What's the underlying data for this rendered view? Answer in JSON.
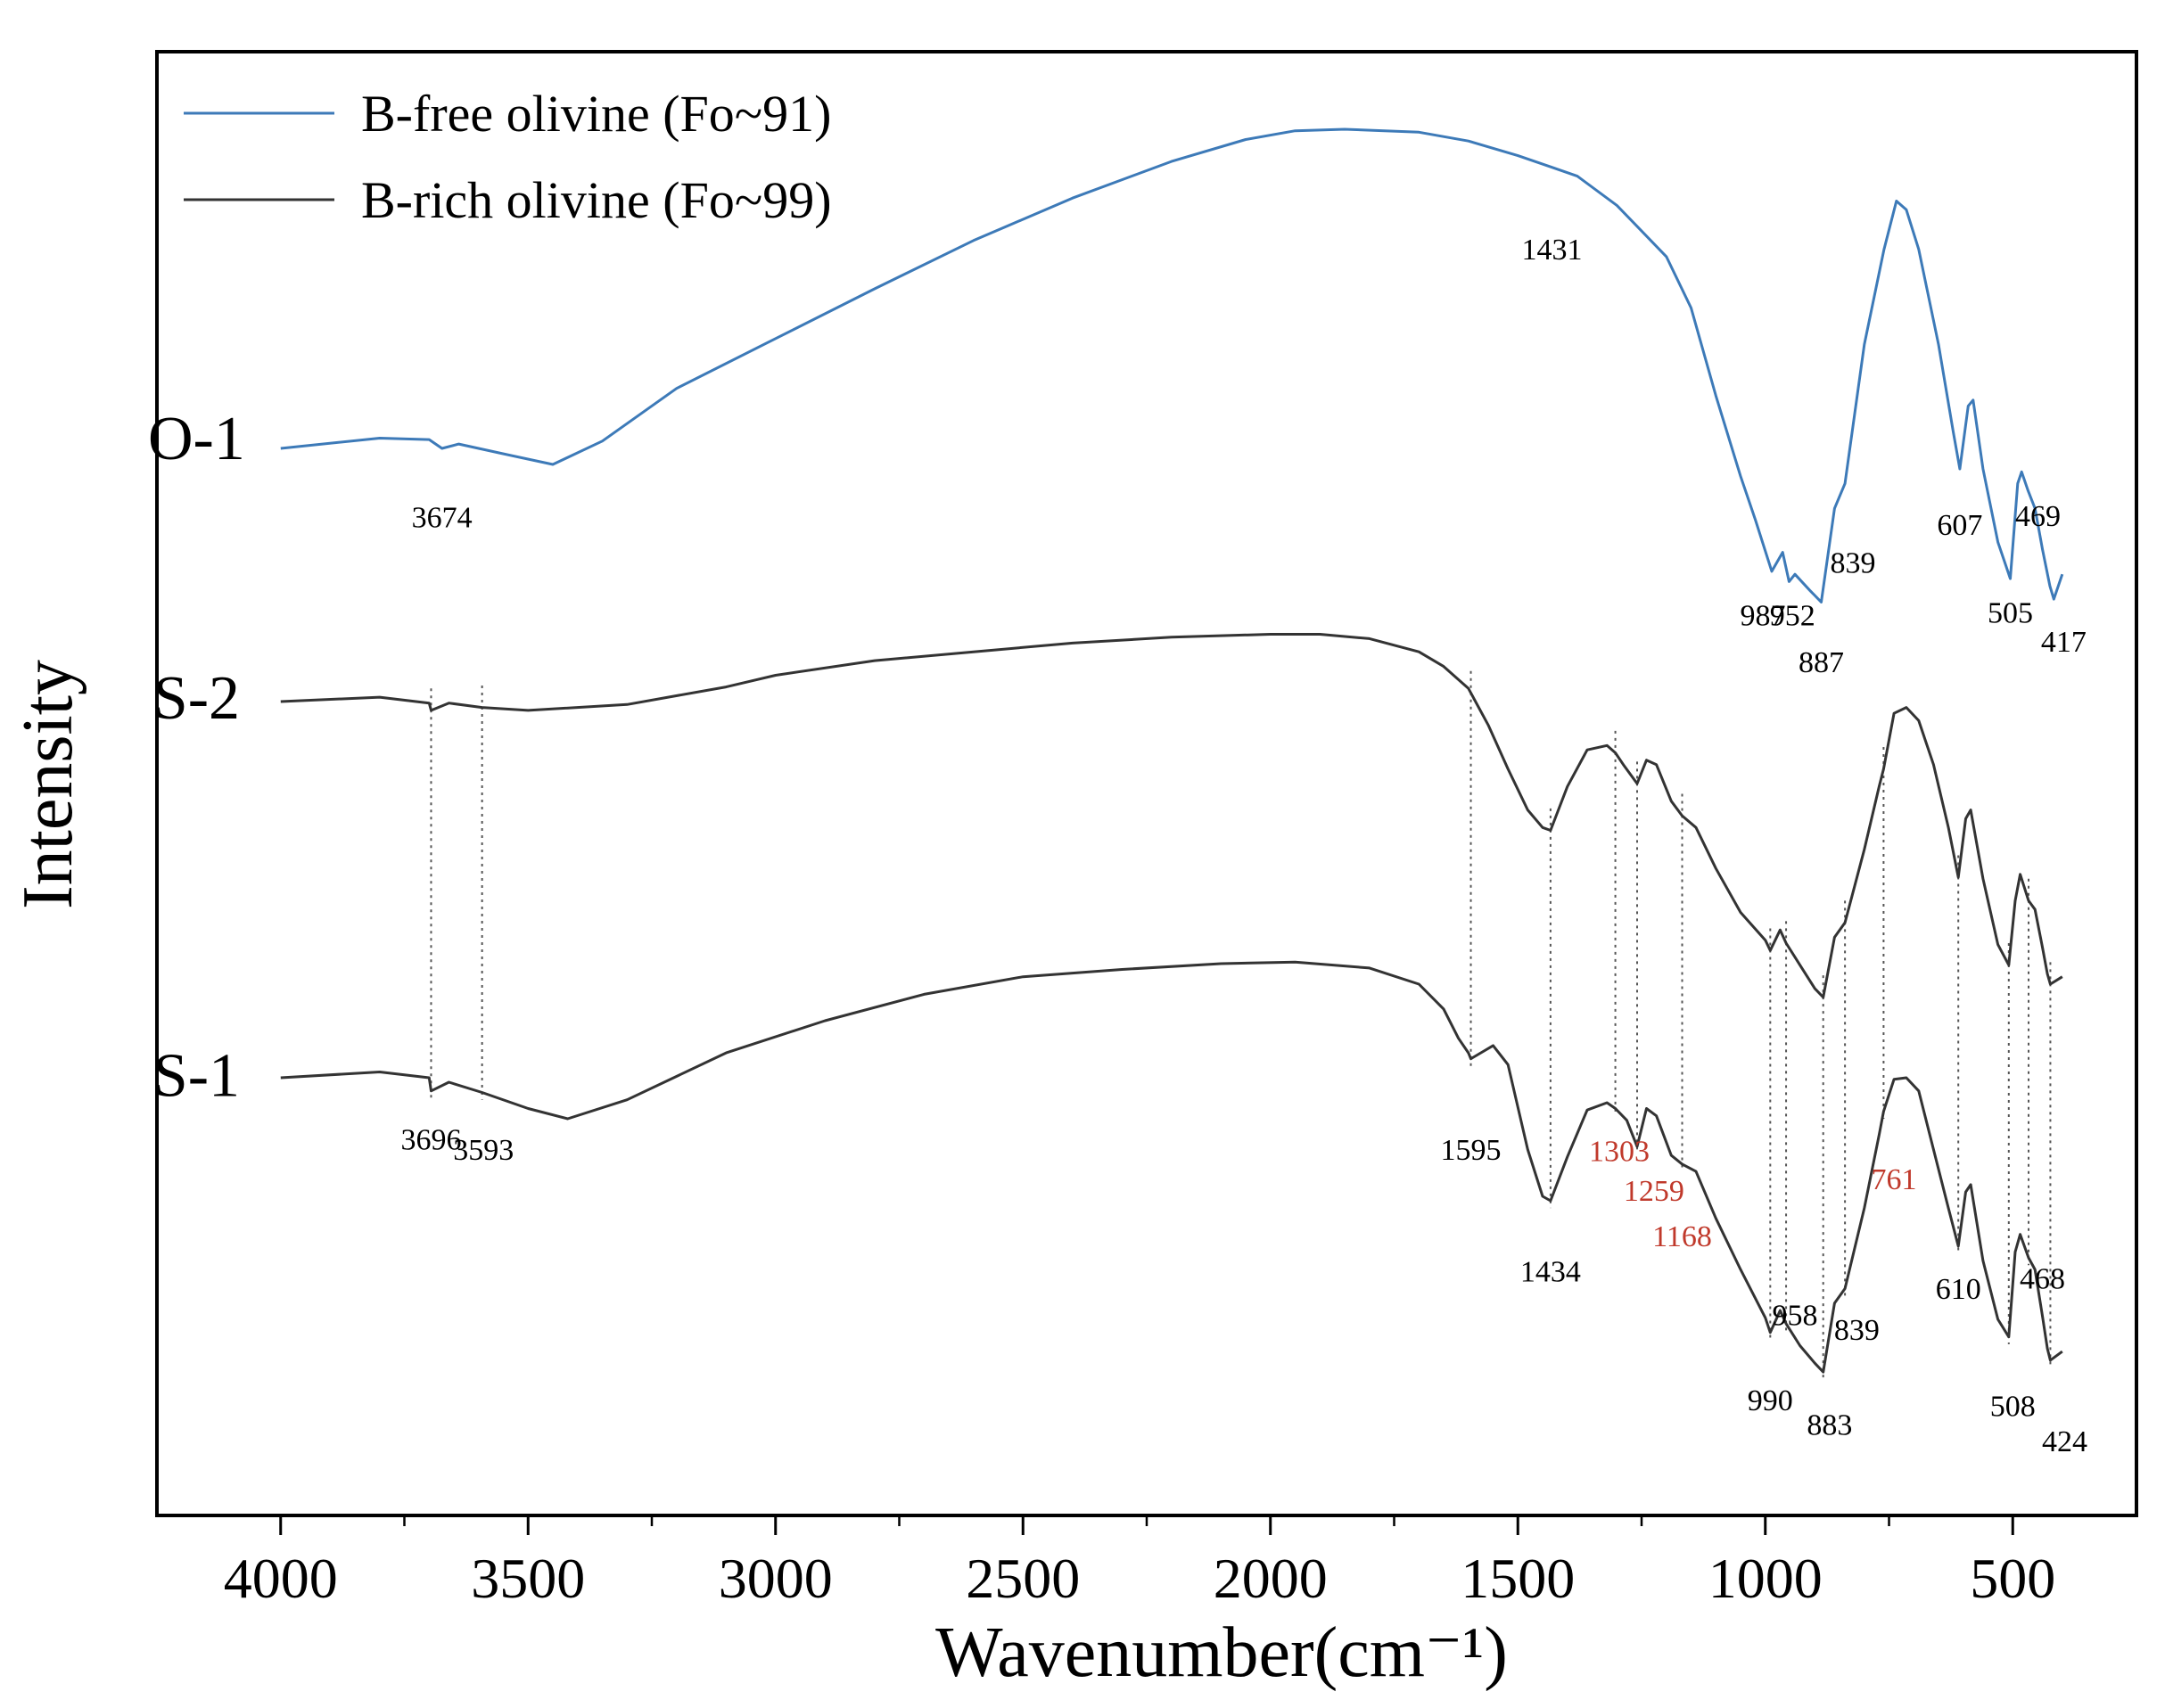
{
  "chart_data": {
    "type": "line",
    "title": "",
    "xlabel": "Wavenumber(cm⁻¹)",
    "ylabel": "Intensity",
    "xlim": [
      4250,
      250
    ],
    "ylim": [
      0,
      100
    ],
    "x_reversed": true,
    "y_ticks_shown": false,
    "grid": false,
    "x_ticks": [
      4000,
      3500,
      3000,
      2500,
      2000,
      1500,
      1000,
      500
    ],
    "x_tick_labels": [
      "4000",
      "3500",
      "3000",
      "2500",
      "2000",
      "1500",
      "1000",
      "500"
    ],
    "legend": {
      "position": "top-left",
      "entries": [
        {
          "label": "B-free olivine (Fo~91)",
          "color": "#3d7ab8"
        },
        {
          "label": "B-rich olivine (Fo~99)",
          "color": "#333333"
        }
      ]
    },
    "series": [
      {
        "name": "O-1",
        "legend": "B-free olivine (Fo~91)",
        "color": "#3d7ab8",
        "points": [
          [
            4000,
            72.9
          ],
          [
            3800,
            73.6
          ],
          [
            3700,
            73.5
          ],
          [
            3674,
            72.9
          ],
          [
            3640,
            73.2
          ],
          [
            3560,
            72.6
          ],
          [
            3450,
            71.8
          ],
          [
            3350,
            73.4
          ],
          [
            3200,
            77.0
          ],
          [
            3000,
            80.4
          ],
          [
            2800,
            83.8
          ],
          [
            2600,
            87.1
          ],
          [
            2400,
            90.0
          ],
          [
            2200,
            92.5
          ],
          [
            2050,
            94.0
          ],
          [
            1950,
            94.6
          ],
          [
            1850,
            94.7
          ],
          [
            1700,
            94.5
          ],
          [
            1600,
            93.9
          ],
          [
            1500,
            92.9
          ],
          [
            1431,
            92.1
          ],
          [
            1380,
            91.5
          ],
          [
            1300,
            89.5
          ],
          [
            1200,
            86.0
          ],
          [
            1150,
            82.5
          ],
          [
            1100,
            76.5
          ],
          [
            1050,
            71.0
          ],
          [
            1020,
            68.0
          ],
          [
            987,
            64.5
          ],
          [
            965,
            65.8
          ],
          [
            952,
            63.8
          ],
          [
            940,
            64.3
          ],
          [
            910,
            63.2
          ],
          [
            887,
            62.4
          ],
          [
            860,
            68.8
          ],
          [
            839,
            70.5
          ],
          [
            800,
            80.0
          ],
          [
            760,
            86.5
          ],
          [
            735,
            89.8
          ],
          [
            715,
            89.2
          ],
          [
            690,
            86.5
          ],
          [
            650,
            80.0
          ],
          [
            620,
            74.0
          ],
          [
            607,
            71.5
          ],
          [
            590,
            75.8
          ],
          [
            580,
            76.2
          ],
          [
            560,
            71.5
          ],
          [
            530,
            66.5
          ],
          [
            505,
            64.0
          ],
          [
            490,
            70.5
          ],
          [
            482,
            71.3
          ],
          [
            469,
            70.0
          ],
          [
            455,
            68.8
          ],
          [
            440,
            66.0
          ],
          [
            425,
            63.5
          ],
          [
            417,
            62.6
          ],
          [
            400,
            64.3
          ]
        ]
      },
      {
        "name": "S-2",
        "legend": "B-rich olivine (Fo~99)",
        "color": "#333333",
        "points": [
          [
            4000,
            55.6
          ],
          [
            3800,
            55.9
          ],
          [
            3700,
            55.5
          ],
          [
            3696,
            55.0
          ],
          [
            3660,
            55.5
          ],
          [
            3593,
            55.2
          ],
          [
            3500,
            55.0
          ],
          [
            3300,
            55.4
          ],
          [
            3100,
            56.6
          ],
          [
            3000,
            57.4
          ],
          [
            2800,
            58.4
          ],
          [
            2600,
            59.0
          ],
          [
            2400,
            59.6
          ],
          [
            2200,
            60.0
          ],
          [
            2000,
            60.2
          ],
          [
            1900,
            60.2
          ],
          [
            1800,
            59.9
          ],
          [
            1700,
            59.0
          ],
          [
            1650,
            58.0
          ],
          [
            1600,
            56.5
          ],
          [
            1560,
            54.0
          ],
          [
            1520,
            51.0
          ],
          [
            1480,
            48.2
          ],
          [
            1450,
            47.0
          ],
          [
            1434,
            46.8
          ],
          [
            1400,
            49.8
          ],
          [
            1360,
            52.3
          ],
          [
            1320,
            52.6
          ],
          [
            1303,
            52.1
          ],
          [
            1285,
            51.2
          ],
          [
            1259,
            50.0
          ],
          [
            1240,
            51.6
          ],
          [
            1220,
            51.3
          ],
          [
            1190,
            48.8
          ],
          [
            1168,
            47.8
          ],
          [
            1140,
            47.0
          ],
          [
            1100,
            44.2
          ],
          [
            1050,
            41.2
          ],
          [
            1000,
            39.3
          ],
          [
            990,
            38.6
          ],
          [
            970,
            40.0
          ],
          [
            958,
            39.1
          ],
          [
            930,
            37.6
          ],
          [
            900,
            36.0
          ],
          [
            883,
            35.4
          ],
          [
            860,
            39.5
          ],
          [
            839,
            40.5
          ],
          [
            800,
            45.5
          ],
          [
            770,
            49.8
          ],
          [
            761,
            51.0
          ],
          [
            740,
            54.8
          ],
          [
            715,
            55.2
          ],
          [
            690,
            54.3
          ],
          [
            660,
            51.3
          ],
          [
            630,
            47.0
          ],
          [
            610,
            43.6
          ],
          [
            595,
            47.6
          ],
          [
            585,
            48.2
          ],
          [
            560,
            43.5
          ],
          [
            530,
            39.0
          ],
          [
            508,
            37.6
          ],
          [
            495,
            42.0
          ],
          [
            485,
            43.8
          ],
          [
            468,
            42.0
          ],
          [
            455,
            41.4
          ],
          [
            440,
            38.8
          ],
          [
            430,
            37.0
          ],
          [
            424,
            36.3
          ],
          [
            400,
            36.8
          ]
        ]
      },
      {
        "name": "S-1",
        "legend": "B-rich olivine (Fo~99)",
        "color": "#333333",
        "points": [
          [
            4000,
            29.9
          ],
          [
            3800,
            30.3
          ],
          [
            3700,
            29.9
          ],
          [
            3696,
            29.0
          ],
          [
            3660,
            29.6
          ],
          [
            3593,
            28.9
          ],
          [
            3500,
            27.8
          ],
          [
            3420,
            27.1
          ],
          [
            3300,
            28.4
          ],
          [
            3100,
            31.6
          ],
          [
            2900,
            33.8
          ],
          [
            2700,
            35.6
          ],
          [
            2500,
            36.8
          ],
          [
            2300,
            37.3
          ],
          [
            2100,
            37.7
          ],
          [
            1950,
            37.8
          ],
          [
            1800,
            37.4
          ],
          [
            1700,
            36.3
          ],
          [
            1650,
            34.6
          ],
          [
            1620,
            32.6
          ],
          [
            1600,
            31.6
          ],
          [
            1595,
            31.2
          ],
          [
            1570,
            31.7
          ],
          [
            1550,
            32.1
          ],
          [
            1520,
            30.8
          ],
          [
            1480,
            25.0
          ],
          [
            1450,
            21.8
          ],
          [
            1434,
            21.5
          ],
          [
            1400,
            24.5
          ],
          [
            1360,
            27.7
          ],
          [
            1320,
            28.2
          ],
          [
            1303,
            27.8
          ],
          [
            1280,
            27.0
          ],
          [
            1259,
            25.2
          ],
          [
            1240,
            27.8
          ],
          [
            1220,
            27.3
          ],
          [
            1190,
            24.6
          ],
          [
            1168,
            24.0
          ],
          [
            1140,
            23.5
          ],
          [
            1100,
            20.3
          ],
          [
            1050,
            16.8
          ],
          [
            1000,
            13.5
          ],
          [
            990,
            12.5
          ],
          [
            970,
            14.0
          ],
          [
            958,
            13.1
          ],
          [
            930,
            11.6
          ],
          [
            900,
            10.4
          ],
          [
            883,
            9.8
          ],
          [
            860,
            14.5
          ],
          [
            839,
            15.5
          ],
          [
            800,
            21.0
          ],
          [
            770,
            26.0
          ],
          [
            761,
            27.6
          ],
          [
            740,
            29.8
          ],
          [
            715,
            29.9
          ],
          [
            690,
            29.0
          ],
          [
            660,
            25.0
          ],
          [
            630,
            21.0
          ],
          [
            610,
            18.4
          ],
          [
            595,
            22.1
          ],
          [
            585,
            22.6
          ],
          [
            560,
            17.4
          ],
          [
            530,
            13.4
          ],
          [
            508,
            12.2
          ],
          [
            495,
            18.0
          ],
          [
            485,
            19.2
          ],
          [
            468,
            17.6
          ],
          [
            455,
            16.8
          ],
          [
            440,
            13.6
          ],
          [
            430,
            11.4
          ],
          [
            424,
            10.6
          ],
          [
            400,
            11.2
          ]
        ]
      }
    ],
    "series_labels": [
      {
        "text": "O-1",
        "x": 4170,
        "y": 73.5
      },
      {
        "text": "S-2",
        "x": 4170,
        "y": 55.8
      },
      {
        "text": "S-1",
        "x": 4170,
        "y": 30.0
      }
    ],
    "annotations": [
      {
        "text": "3674",
        "x": 3674,
        "y": 67.5,
        "color": "#000000"
      },
      {
        "text": "1431",
        "x": 1431,
        "y": 85.8,
        "color": "#000000"
      },
      {
        "text": "987",
        "x": 1005,
        "y": 60.8,
        "color": "#000000"
      },
      {
        "text": "952",
        "x": 945,
        "y": 60.8,
        "color": "#000000"
      },
      {
        "text": "887",
        "x": 887,
        "y": 57.6,
        "color": "#000000"
      },
      {
        "text": "839",
        "x": 823,
        "y": 64.4,
        "color": "#000000"
      },
      {
        "text": "607",
        "x": 607,
        "y": 67.0,
        "color": "#000000"
      },
      {
        "text": "469",
        "x": 449,
        "y": 67.6,
        "color": "#000000"
      },
      {
        "text": "505",
        "x": 505,
        "y": 61.0,
        "color": "#000000"
      },
      {
        "text": "417",
        "x": 397,
        "y": 59.0,
        "color": "#000000"
      },
      {
        "text": "3696",
        "x": 3696,
        "y": 25.0,
        "color": "#000000"
      },
      {
        "text": "3593",
        "x": 3590,
        "y": 24.3,
        "color": "#000000"
      },
      {
        "text": "1595",
        "x": 1595,
        "y": 24.3,
        "color": "#000000"
      },
      {
        "text": "1434",
        "x": 1434,
        "y": 16.0,
        "color": "#000000"
      },
      {
        "text": "1303",
        "x": 1295,
        "y": 24.2,
        "color": "#c0392b"
      },
      {
        "text": "1259",
        "x": 1225,
        "y": 21.5,
        "color": "#c0392b"
      },
      {
        "text": "1168",
        "x": 1168,
        "y": 18.4,
        "color": "#c0392b"
      },
      {
        "text": "761",
        "x": 740,
        "y": 22.3,
        "color": "#c0392b"
      },
      {
        "text": "990",
        "x": 990,
        "y": 7.2,
        "color": "#000000"
      },
      {
        "text": "958",
        "x": 940,
        "y": 13.0,
        "color": "#000000"
      },
      {
        "text": "883",
        "x": 870,
        "y": 5.5,
        "color": "#000000"
      },
      {
        "text": "839",
        "x": 815,
        "y": 12.0,
        "color": "#000000"
      },
      {
        "text": "610",
        "x": 610,
        "y": 14.8,
        "color": "#000000"
      },
      {
        "text": "468",
        "x": 440,
        "y": 15.5,
        "color": "#000000"
      },
      {
        "text": "508",
        "x": 500,
        "y": 6.8,
        "color": "#000000"
      },
      {
        "text": "424",
        "x": 395,
        "y": 4.4,
        "color": "#000000"
      }
    ],
    "guide_lines": [
      3696,
      3593,
      1595,
      1434,
      1303,
      1259,
      1168,
      990,
      958,
      883,
      839,
      761,
      610,
      508,
      468,
      424
    ]
  }
}
